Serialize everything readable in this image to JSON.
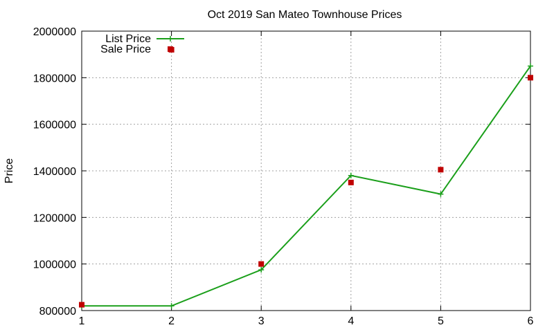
{
  "chart_data": {
    "type": "line",
    "title": "Oct 2019 San Mateo Townhouse Prices",
    "xlabel": "",
    "ylabel": "Price",
    "xlim": [
      1,
      6
    ],
    "ylim": [
      800000,
      2000000
    ],
    "xticks": [
      1,
      2,
      3,
      4,
      5,
      6
    ],
    "yticks": [
      800000,
      1000000,
      1200000,
      1400000,
      1600000,
      1800000,
      2000000
    ],
    "grid": true,
    "legend_position": "top-left",
    "series": [
      {
        "name": "List Price",
        "kind": "line-with-plus-markers",
        "color": "#1a9f1a",
        "x": [
          1,
          2,
          3,
          4,
          5,
          6
        ],
        "y": [
          820000,
          820000,
          975000,
          1380000,
          1300000,
          1850000
        ]
      },
      {
        "name": "Sale Price",
        "kind": "square-points",
        "color": "#c00000",
        "x": [
          1,
          2,
          3,
          4,
          5,
          6
        ],
        "y": [
          825000,
          1920000,
          1000000,
          1350000,
          1405000,
          1800000
        ]
      }
    ]
  }
}
